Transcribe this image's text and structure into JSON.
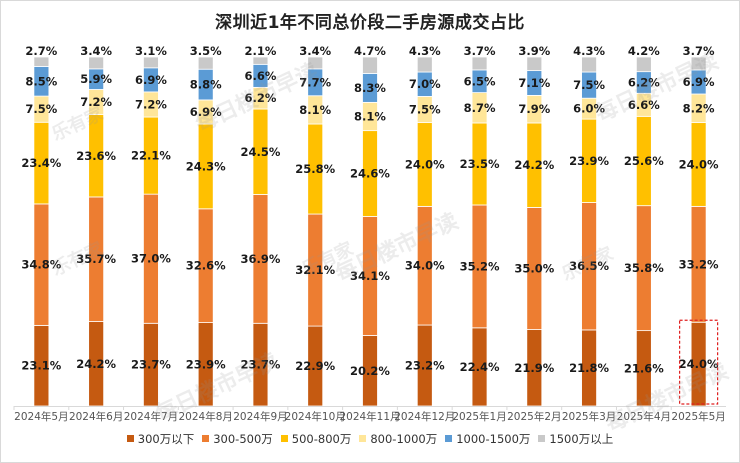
{
  "chart_data": {
    "type": "bar",
    "stacked": true,
    "percent_stacked": true,
    "title": "深圳近1年不同总价段二手房源成交占比",
    "xlabel": "",
    "ylabel": "",
    "ylim": [
      0,
      100
    ],
    "grid": false,
    "legend_position": "bottom",
    "categories": [
      "2024年5月",
      "2024年6月",
      "2024年7月",
      "2024年8月",
      "2024年9月",
      "2024年10月",
      "2024年11月",
      "2024年12月",
      "2025年1月",
      "2025年2月",
      "2025年3月",
      "2025年4月",
      "2025年5月"
    ],
    "series": [
      {
        "name": "300万以下",
        "color": "#c55a11",
        "values": [
          23.1,
          24.2,
          23.7,
          23.9,
          23.7,
          22.9,
          20.2,
          23.2,
          22.4,
          21.9,
          21.8,
          21.6,
          24.0
        ]
      },
      {
        "name": "300-500万",
        "color": "#ed7d31",
        "values": [
          34.8,
          35.7,
          37.0,
          32.6,
          36.9,
          32.1,
          34.1,
          34.0,
          35.2,
          35.0,
          36.5,
          35.8,
          33.2
        ]
      },
      {
        "name": "500-800万",
        "color": "#ffc000",
        "values": [
          23.4,
          23.6,
          22.1,
          24.3,
          24.5,
          25.8,
          24.6,
          24.0,
          23.5,
          24.2,
          23.9,
          25.6,
          24.0
        ]
      },
      {
        "name": "800-1000万",
        "color": "#ffe699",
        "values": [
          7.5,
          7.2,
          7.2,
          6.9,
          6.2,
          8.1,
          8.1,
          7.5,
          8.7,
          7.9,
          6.0,
          6.6,
          8.2
        ]
      },
      {
        "name": "1000-1500万",
        "color": "#5b9bd5",
        "values": [
          8.5,
          5.9,
          6.9,
          8.8,
          6.6,
          7.7,
          8.3,
          7.0,
          6.5,
          7.1,
          7.5,
          6.2,
          6.9
        ]
      },
      {
        "name": "1500万以上",
        "color": "#c9c9c9",
        "values": [
          2.7,
          3.4,
          3.1,
          3.5,
          2.1,
          3.4,
          4.7,
          4.3,
          3.7,
          3.9,
          4.3,
          4.2,
          3.7
        ]
      }
    ],
    "annotations": [
      {
        "type": "dashed-box",
        "category": "2025年5月",
        "series": "300万以下",
        "color": "#e02020"
      }
    ]
  },
  "watermark": {
    "brand": "乐有家",
    "text": "每日楼市早读"
  }
}
